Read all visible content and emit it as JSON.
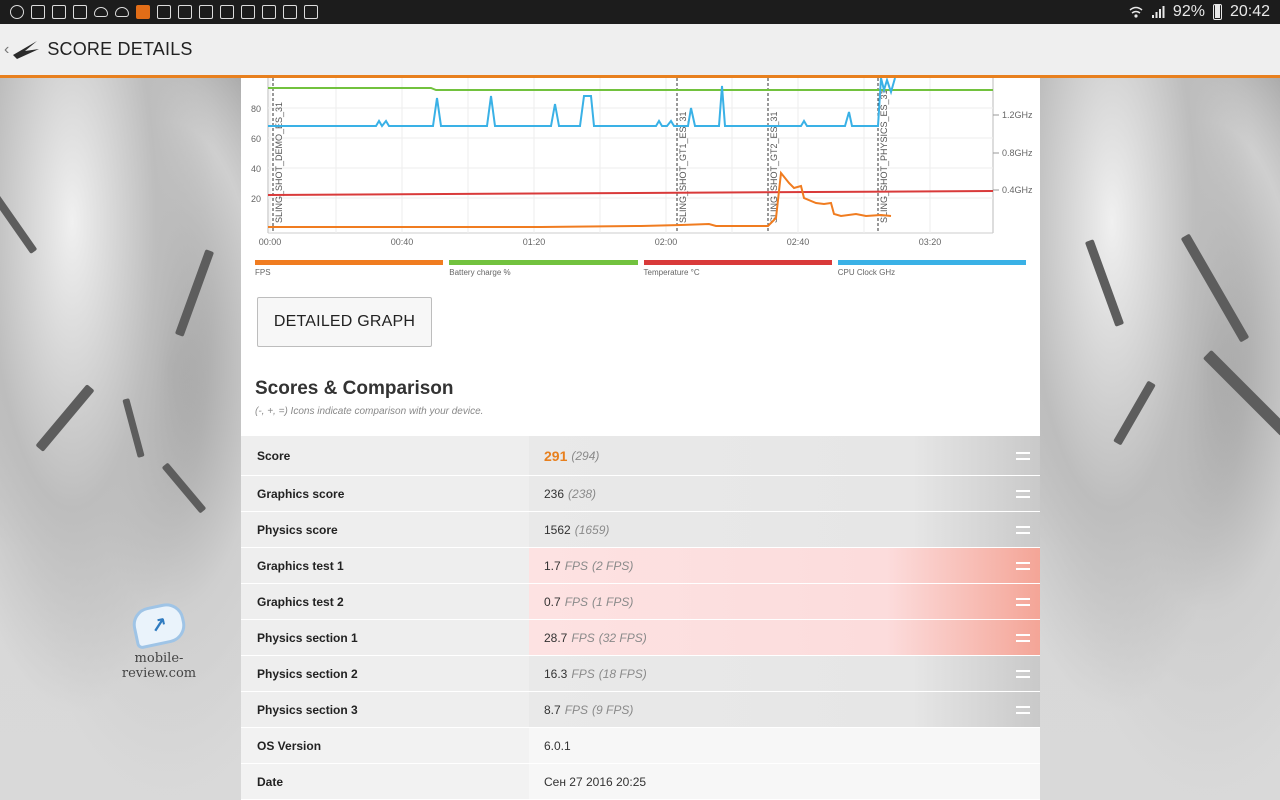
{
  "status_bar": {
    "battery": "92%",
    "time": "20:42"
  },
  "app_bar": {
    "back": "‹",
    "title": "SCORE DETAILS"
  },
  "watermark": {
    "text": "mobile-review.com"
  },
  "chart_data": {
    "type": "line",
    "x_ticks": [
      "00:00",
      "00:40",
      "01:20",
      "02:00",
      "02:40",
      "03:20"
    ],
    "y_left_ticks": [
      "20",
      "40",
      "60",
      "80"
    ],
    "y_right_ticks": [
      "1.2GHz",
      "0.8GHz",
      "0.4GHz"
    ],
    "markers": [
      "SLING_SHOT_DEMO_ES_31",
      "SLING_SHOT_GT1_ES_31",
      "SLING_SHOT_GT2_ES_31",
      "SLING_SHOT_PHYSICS_ES_31"
    ],
    "legend": [
      {
        "name": "FPS",
        "color": "#f07c20"
      },
      {
        "name": "Battery charge %",
        "color": "#72c23e"
      },
      {
        "name": "Temperature °C",
        "color": "#d93a3a"
      },
      {
        "name": "CPU Clock GHz",
        "color": "#3ab1e6"
      }
    ]
  },
  "detailed_graph_button": "DETAILED GRAPH",
  "scores": {
    "title": "Scores & Comparison",
    "subtitle": "(-, +, =) Icons indicate comparison with your device.",
    "rows": [
      {
        "label": "Score",
        "value": "291",
        "unit": "",
        "ref": "(294)"
      },
      {
        "label": "Graphics score",
        "value": "236",
        "unit": "",
        "ref": "(238)"
      },
      {
        "label": "Physics score",
        "value": "1562",
        "unit": "",
        "ref": "(1659)"
      },
      {
        "label": "Graphics test 1",
        "value": "1.7",
        "unit": "FPS",
        "ref": "(2 FPS)"
      },
      {
        "label": "Graphics test 2",
        "value": "0.7",
        "unit": "FPS",
        "ref": "(1 FPS)"
      },
      {
        "label": "Physics section 1",
        "value": "28.7",
        "unit": "FPS",
        "ref": "(32 FPS)"
      },
      {
        "label": "Physics section 2",
        "value": "16.3",
        "unit": "FPS",
        "ref": "(18 FPS)"
      },
      {
        "label": "Physics section 3",
        "value": "8.7",
        "unit": "FPS",
        "ref": "(9 FPS)"
      },
      {
        "label": "OS Version",
        "value": "6.0.1",
        "unit": "",
        "ref": ""
      },
      {
        "label": "Date",
        "value": "Сен 27 2016 20:25",
        "unit": "",
        "ref": ""
      }
    ]
  }
}
